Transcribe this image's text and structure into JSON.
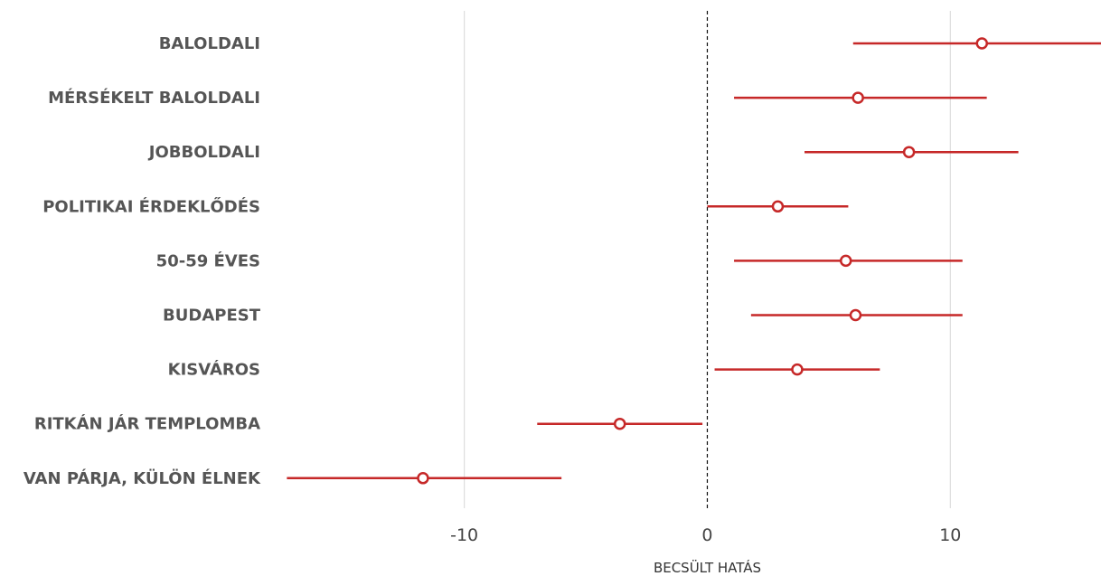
{
  "chart_data": {
    "type": "scatter",
    "subtype": "coefficient-plot",
    "title": "",
    "xlabel": "BECSÜLT HATÁS",
    "ylabel": "",
    "xlim": [
      -17.5,
      16.2
    ],
    "xticks": [
      -10,
      0,
      10
    ],
    "xtick_labels": [
      "-10",
      "0",
      "10"
    ],
    "reference_line": 0,
    "grid": "vertical",
    "legend": "none",
    "colors": {
      "marker": "#c62828",
      "marker_fill": "#ffffff",
      "grid": "#dddddd",
      "reference": "#111111",
      "label": "#555555"
    },
    "categories": [
      "BALOLDALI",
      "MÉRSÉKELT BALOLDALI",
      "JOBBOLDALI",
      "POLITIKAI ÉRDEKLŐDÉS",
      "50-59 ÉVES",
      "BUDAPEST",
      "KISVÁROS",
      "RITKÁN JÁR TEMPLOMBA",
      "VAN PÁRJA, KÜLÖN ÉLNEK"
    ],
    "estimates": [
      11.3,
      6.2,
      8.3,
      2.9,
      5.7,
      6.1,
      3.7,
      -3.6,
      -11.7
    ],
    "ci_low": [
      6.0,
      1.1,
      4.0,
      0.0,
      1.1,
      1.8,
      0.3,
      -7.0,
      -17.3
    ],
    "ci_high": [
      16.2,
      11.5,
      12.8,
      5.8,
      10.5,
      10.5,
      7.1,
      -0.2,
      -6.0
    ]
  }
}
